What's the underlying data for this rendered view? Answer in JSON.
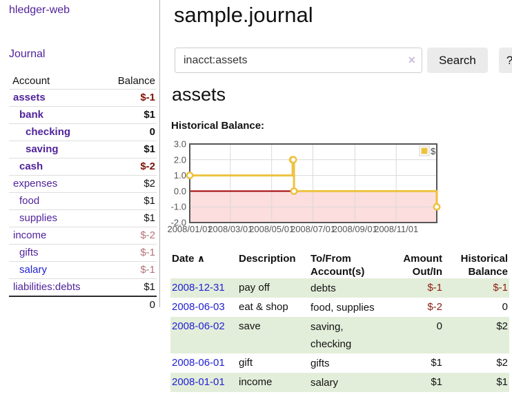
{
  "app": {
    "brand": "hledger-web"
  },
  "sidebar": {
    "journal_link": "Journal",
    "headers": {
      "account": "Account",
      "balance": "Balance"
    },
    "accounts": [
      {
        "name": "assets",
        "balance": "$-1",
        "depth": 1,
        "bold": true,
        "negative": true
      },
      {
        "name": "bank",
        "balance": "$1",
        "depth": 2,
        "bold": true,
        "negative": false
      },
      {
        "name": "checking",
        "balance": "0",
        "depth": 3,
        "bold": true,
        "negative": false
      },
      {
        "name": "saving",
        "balance": "$1",
        "depth": 3,
        "bold": true,
        "negative": false
      },
      {
        "name": "cash",
        "balance": "$-2",
        "depth": 2,
        "bold": true,
        "negative": true
      },
      {
        "name": "expenses",
        "balance": "$2",
        "depth": 1,
        "bold": false,
        "negative": false
      },
      {
        "name": "food",
        "balance": "$1",
        "depth": 2,
        "bold": false,
        "negative": false
      },
      {
        "name": "supplies",
        "balance": "$1",
        "depth": 2,
        "bold": false,
        "negative": false
      },
      {
        "name": "income",
        "balance": "$-2",
        "depth": 1,
        "bold": false,
        "negative": true,
        "muted": true
      },
      {
        "name": "gifts",
        "balance": "$-1",
        "depth": 2,
        "bold": false,
        "negative": true,
        "muted": true
      },
      {
        "name": "salary",
        "balance": "$-1",
        "depth": 2,
        "bold": false,
        "negative": true,
        "muted": true,
        "unvisited": true
      },
      {
        "name": "liabilities:debts",
        "balance": "$1",
        "depth": 1,
        "bold": false,
        "negative": false
      }
    ],
    "total": "0"
  },
  "main": {
    "title": "sample.journal",
    "search": {
      "value": "inacct:assets",
      "clear_icon": "×",
      "search_button": "Search",
      "help_button": "?"
    },
    "account_heading": "assets",
    "chart_heading": "Historical Balance:"
  },
  "chart_data": {
    "type": "line",
    "title": "Historical Balance",
    "step": true,
    "series": [
      {
        "name": "$",
        "color": "#edc240",
        "points": [
          {
            "date": "2008-01-01",
            "day": 0,
            "value": 1
          },
          {
            "date": "2008-06-01",
            "day": 152,
            "value": 2
          },
          {
            "date": "2008-06-02",
            "day": 153,
            "value": 2
          },
          {
            "date": "2008-06-03",
            "day": 154,
            "value": 0
          },
          {
            "date": "2008-12-31",
            "day": 365,
            "value": -1
          }
        ]
      }
    ],
    "ylim": [
      -2,
      3
    ],
    "yticks": [
      "3.0",
      "2.0",
      "1.0",
      "0.0",
      "-1.0",
      "-2.0"
    ],
    "xticks": [
      {
        "label": "2008/01/01",
        "day": 0
      },
      {
        "label": "2008/03/01",
        "day": 60
      },
      {
        "label": "2008/05/01",
        "day": 121
      },
      {
        "label": "2008/07/01",
        "day": 182
      },
      {
        "label": "2008/09/01",
        "day": 244
      },
      {
        "label": "2008/11/01",
        "day": 305
      }
    ],
    "xrange_days": [
      0,
      365
    ],
    "grid": true,
    "legend": {
      "label": "$",
      "position": "top-right"
    },
    "colors": {
      "line": "#edc240",
      "negative_region": "#fbdedd",
      "zero_line": "#a00000",
      "gridline": "#d9d9d9",
      "plot_border": "#555555",
      "tick_label": "#545454"
    }
  },
  "register_table": {
    "headers": {
      "date": "Date",
      "sort_icon": "∧",
      "description": "Description",
      "accounts_line1": "To/From",
      "accounts_line2": "Account(s)",
      "amount_line1": "Amount",
      "amount_line2": "Out/In",
      "balance_line1": "Historical",
      "balance_line2": "Balance"
    },
    "rows": [
      {
        "date": "2008-12-31",
        "description": "pay off",
        "accounts": "debts",
        "amount": "$-1",
        "balance": "$-1",
        "amount_negative": true,
        "balance_negative": true
      },
      {
        "date": "2008-06-03",
        "description": "eat & shop",
        "accounts": "food, supplies",
        "amount": "$-2",
        "balance": "0",
        "amount_negative": true,
        "balance_negative": false
      },
      {
        "date": "2008-06-02",
        "description": "save",
        "accounts": "saving, checking",
        "amount": "0",
        "balance": "$2",
        "amount_negative": false,
        "balance_negative": false
      },
      {
        "date": "2008-06-01",
        "description": "gift",
        "accounts": "gifts",
        "amount": "$1",
        "balance": "$2",
        "amount_negative": false,
        "balance_negative": false
      },
      {
        "date": "2008-01-01",
        "description": "income",
        "accounts": "salary",
        "amount": "$1",
        "balance": "$1",
        "amount_negative": false,
        "balance_negative": false
      }
    ]
  },
  "colors": {
    "link_purple": "#50239b",
    "link_blue": "#2121d3",
    "negative_strong": "#7d1407",
    "negative_muted": "#b17479",
    "row_green": "#e3eeda"
  }
}
